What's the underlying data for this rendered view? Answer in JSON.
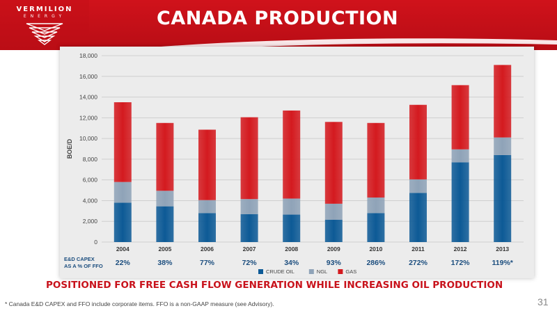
{
  "header": {
    "logo_name": "VERMILION",
    "logo_sub": "ENERGY",
    "title": "CANADA PRODUCTION"
  },
  "chart_data": {
    "type": "bar",
    "stacked": true,
    "categories": [
      "2004",
      "2005",
      "2006",
      "2007",
      "2008",
      "2009",
      "2010",
      "2011",
      "2012",
      "2013"
    ],
    "series": [
      {
        "name": "CRUDE OIL",
        "color": "#0d5a96",
        "values": [
          3800,
          3450,
          2800,
          2700,
          2650,
          2150,
          2800,
          4750,
          7700,
          8400
        ]
      },
      {
        "name": "NGL",
        "color": "#8fa3b8",
        "values": [
          2000,
          1500,
          1250,
          1450,
          1550,
          1550,
          1500,
          1300,
          1250,
          1700
        ]
      },
      {
        "name": "GAS",
        "color": "#d41a1f",
        "values": [
          7700,
          6550,
          6800,
          7900,
          8500,
          7900,
          7200,
          7200,
          6200,
          7000
        ]
      }
    ],
    "ylabel": "BOE/D",
    "ylim": [
      0,
      18000
    ],
    "yticks": [
      "0",
      "2,000",
      "4,000",
      "6,000",
      "8,000",
      "10,000",
      "12,000",
      "14,000",
      "16,000",
      "18,000"
    ],
    "grid": true,
    "legend": "bottom-center",
    "capex_label": "E&D CAPEX\nAS A % OF FFO",
    "capex_values": [
      "22%",
      "38%",
      "77%",
      "72%",
      "34%",
      "93%",
      "286%",
      "272%",
      "172%",
      "119%*"
    ]
  },
  "tagline": "POSITIONED FOR FREE CASH FLOW GENERATION WHILE INCREASING OIL PRODUCTION",
  "footnote": "*  Canada E&D CAPEX and FFO include corporate items.  FFO is a non-GAAP measure (see Advisory).",
  "page_number": "31"
}
